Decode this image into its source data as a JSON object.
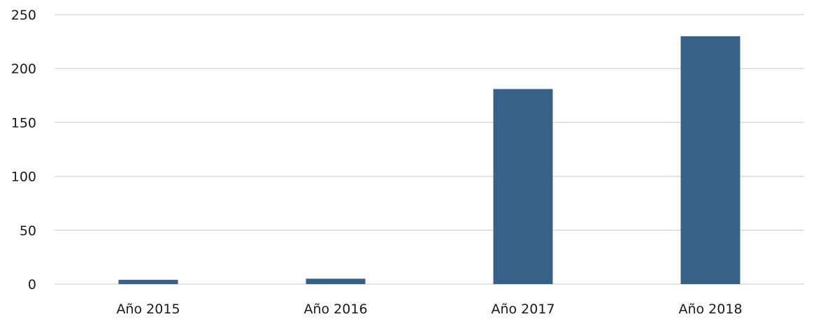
{
  "chart_data": {
    "type": "bar",
    "title": "",
    "xlabel": "",
    "ylabel": "",
    "categories": [
      "Año 2015",
      "Año 2016",
      "Año 2017",
      "Año 2018"
    ],
    "series": [
      {
        "values": [
          4,
          5,
          181,
          230
        ]
      }
    ],
    "ylim": [
      0,
      250
    ],
    "yticks": [
      0,
      50,
      100,
      150,
      200,
      250
    ],
    "grid": true,
    "legend": "none",
    "colors": {
      "bar": "#376287",
      "grid": "#d9d9d9",
      "text": "#1a1a1a"
    }
  }
}
